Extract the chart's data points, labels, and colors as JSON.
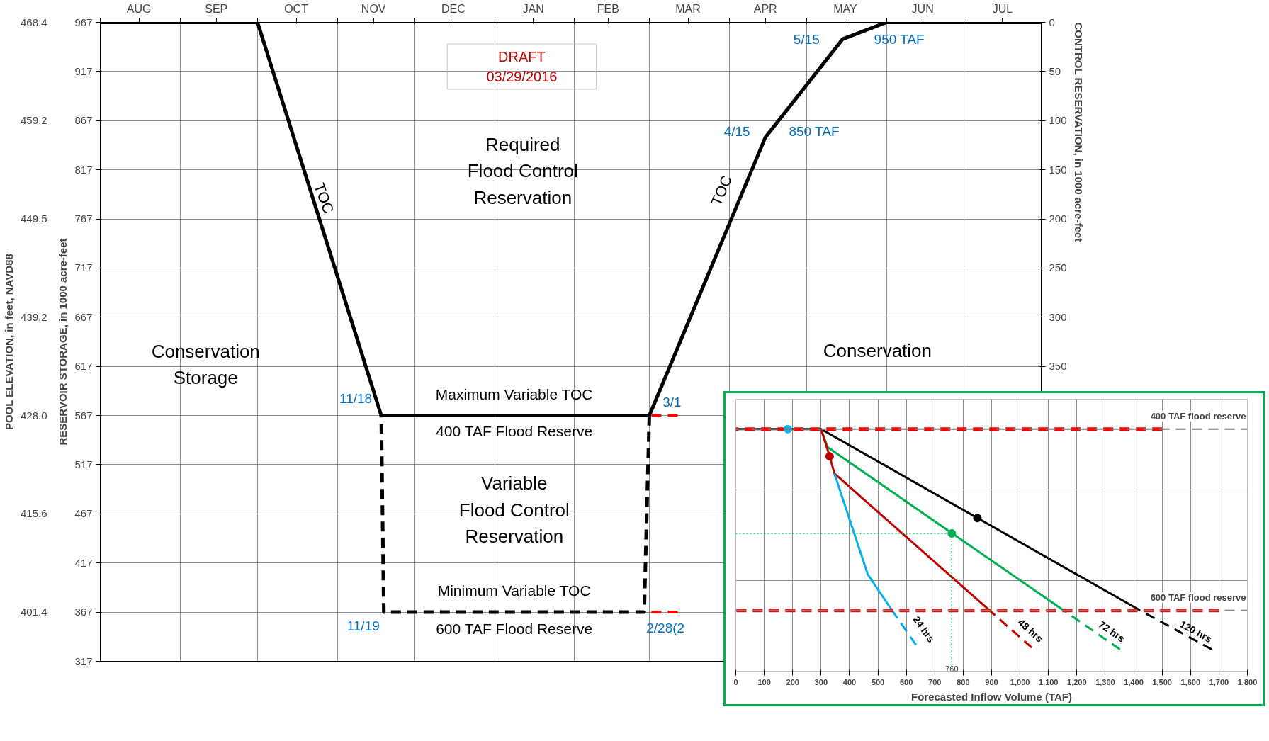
{
  "chart_data": [
    {
      "type": "line",
      "xlim": [
        "2015-08-01",
        "2016-07-31"
      ],
      "xticks": [
        {
          "value": "2015-08-01",
          "label": null
        },
        {
          "value": "2015-08-16",
          "label": "AUG"
        },
        {
          "value": "2015-09-01",
          "label": null
        },
        {
          "value": "2015-09-15",
          "label": "SEP"
        },
        {
          "value": "2015-10-01",
          "label": null
        },
        {
          "value": "2015-10-16",
          "label": "OCT"
        },
        {
          "value": "2015-11-01",
          "label": null
        },
        {
          "value": "2015-11-15",
          "label": "NOV"
        },
        {
          "value": "2015-12-01",
          "label": null
        },
        {
          "value": "2015-12-16",
          "label": "DEC"
        },
        {
          "value": "2016-01-01",
          "label": null
        },
        {
          "value": "2016-01-16",
          "label": "JAN"
        },
        {
          "value": "2016-02-01",
          "label": null
        },
        {
          "value": "2016-02-14",
          "label": "FEB"
        },
        {
          "value": "2016-03-01",
          "label": null
        },
        {
          "value": "2016-03-16",
          "label": "MAR"
        },
        {
          "value": "2016-04-01",
          "label": null
        },
        {
          "value": "2016-04-15",
          "label": "APR"
        },
        {
          "value": "2016-05-01",
          "label": null
        },
        {
          "value": "2016-05-16",
          "label": "MAY"
        },
        {
          "value": "2016-06-01",
          "label": null
        },
        {
          "value": "2016-06-15",
          "label": "JUN"
        },
        {
          "value": "2016-07-01",
          "label": null
        },
        {
          "value": "2016-07-16",
          "label": "JUL"
        }
      ],
      "ylim": [
        317,
        967
      ],
      "yticks": [
        317,
        367,
        417,
        467,
        517,
        567,
        617,
        667,
        717,
        767,
        817,
        867,
        917,
        967
      ],
      "ylabel": "RESERVOIR STORAGE, in 1000 acre-feet",
      "y2label": "CONTROL RESERVATION, in 1000 acre-feet",
      "y2lim": [
        650,
        0
      ],
      "y2ticks": [
        0,
        50,
        100,
        150,
        200,
        250,
        300,
        350
      ],
      "y3label": "POOL ELEVATION, in feet, NAVD88",
      "grid": true,
      "series": [
        {
          "color": "#000000",
          "line_style": "solid",
          "x": [
            "2015-08-01",
            "2015-10-01",
            "2015-11-18",
            "2016-03-01",
            "2016-04-15",
            "2016-05-15",
            "2016-06-01",
            "2016-07-31"
          ],
          "values": [
            967,
            967,
            567,
            567,
            850,
            950,
            967,
            967
          ]
        },
        {
          "color": "#000000",
          "line_style": "dashed",
          "x": [
            "2015-11-18",
            "2015-11-19",
            "2016-02-28",
            "2016-03-01"
          ],
          "values": [
            567,
            367,
            367,
            567
          ]
        },
        {
          "color": "#ff0000",
          "line_style": "dashed",
          "x": [
            "2016-03-01",
            "2016-03-12"
          ],
          "values": [
            567,
            567
          ]
        },
        {
          "color": "#ff0000",
          "line_style": "dashed",
          "x": [
            "2016-03-01",
            "2016-03-12"
          ],
          "values": [
            367,
            367
          ]
        }
      ],
      "annotations": [
        "DRAFT\n03/29/2016",
        "Required\nFlood Control\nReservation",
        "TOC",
        "TOC",
        "Conservation\nStorage",
        "Conservation",
        "Maximum Variable TOC",
        "400 TAF Flood Reserve",
        "Variable\nFlood Control\nReservation",
        "Minimum Variable TOC",
        "600 TAF Flood Reserve",
        {
          "text": "11/18",
          "x": "2015-11-18",
          "y": 567
        },
        {
          "text": "11/19",
          "x": "2015-11-19",
          "y": 367
        },
        {
          "text": "3/1",
          "x": "2016-03-01",
          "y": 567
        },
        {
          "text": "2/28(2",
          "x": "2016-02-28",
          "y": 367
        },
        {
          "text": "4/15",
          "x": "2016-04-15",
          "y": 850
        },
        {
          "text": "850 TAF",
          "x": "2016-04-15",
          "y": 850
        },
        {
          "text": "5/15",
          "x": "2016-05-15",
          "y": 950
        },
        {
          "text": "950 TAF",
          "x": "2016-05-15",
          "y": 950
        },
        "468.4",
        "459.2",
        "449.5",
        "439.2",
        "428.0",
        "415.6",
        "401.4"
      ]
    },
    {
      "type": "line",
      "xlabel": "Forecasted Inflow Volume (TAF)",
      "xlim": [
        0,
        1800
      ],
      "xticks": [
        0,
        100,
        200,
        300,
        400,
        500,
        600,
        700,
        800,
        900,
        {
          "value": 1000,
          "label": "1,000"
        },
        {
          "value": 1100,
          "label": "1,100"
        },
        {
          "value": 1200,
          "label": "1,200"
        },
        {
          "value": 1300,
          "label": "1,300"
        },
        {
          "value": 1400,
          "label": "1,400"
        },
        {
          "value": 1500,
          "label": "1,500"
        },
        {
          "value": 1600,
          "label": "1,600"
        },
        {
          "value": 1700,
          "label": "1,700"
        },
        {
          "value": 1800,
          "label": "1,800"
        }
      ],
      "ylim": [
        667,
        367
      ],
      "yticks": [
        {
          "value": 467,
          "label": null
        },
        {
          "value": 567,
          "label": null
        }
      ],
      "tick_labels": "x",
      "grid": true,
      "ref_lines": [
        {
          "axis": "y",
          "value": 400,
          "label": "400 TAF flood reserve",
          "color": "#808080",
          "line_style": "dashed"
        },
        {
          "axis": "y",
          "value": 600,
          "label": "600 TAF flood reserve",
          "color": "#808080",
          "line_style": "dashed"
        }
      ],
      "series": [
        {
          "type": "line",
          "color": "#000000",
          "line_style": "solid",
          "x": [
            0,
            300,
            1423
          ],
          "values": [
            400,
            400,
            600
          ]
        },
        {
          "type": "line",
          "name": "120 hrs",
          "color": "#000000",
          "line_style": "dashed",
          "x": [
            1423,
            1675
          ],
          "values": [
            600,
            643
          ]
        },
        {
          "type": "line",
          "color": "#00b050",
          "line_style": "solid",
          "x": [
            300,
            323,
            1154
          ],
          "values": [
            400,
            420,
            600
          ]
        },
        {
          "type": "line",
          "name": "72 hrs",
          "color": "#00b050",
          "line_style": "dashed",
          "x": [
            1154,
            1352
          ],
          "values": [
            600,
            643
          ]
        },
        {
          "type": "line",
          "color": "#c00000",
          "line_style": "solid",
          "x": [
            300,
            330,
            347,
            893
          ],
          "values": [
            400,
            430,
            449,
            600
          ]
        },
        {
          "type": "line",
          "name": "48 hrs",
          "color": "#c00000",
          "line_style": "dashed",
          "x": [
            893,
            1041
          ],
          "values": [
            600,
            641
          ]
        },
        {
          "type": "line",
          "color": "#00b0f0",
          "line_style": "solid",
          "x": [
            347,
            464,
            550
          ],
          "values": [
            449,
            560,
            600
          ]
        },
        {
          "type": "line",
          "name": "24 hrs",
          "color": "#00b0f0",
          "line_style": "dashed",
          "x": [
            550,
            634
          ],
          "values": [
            600,
            638
          ]
        },
        {
          "type": "line",
          "color": "#00b050",
          "line_style": "dotted",
          "x": [
            0,
            760,
            760
          ],
          "values": [
            515,
            515,
            667
          ]
        },
        {
          "type": "line",
          "color": "#ff0000",
          "line_style": "dashed",
          "x": [
            0,
            1500
          ],
          "values": [
            400,
            400
          ]
        },
        {
          "type": "line",
          "color": "#ff0000",
          "line_style": "dashed",
          "x": [
            0,
            1700
          ],
          "values": [
            600,
            600
          ]
        },
        {
          "type": "scatter",
          "marker": "circle",
          "color": "#00b0f0",
          "x": [
            183
          ],
          "values": [
            400
          ]
        },
        {
          "type": "scatter",
          "marker": "circle",
          "color": "#c00000",
          "x": [
            330
          ],
          "values": [
            430
          ]
        },
        {
          "type": "scatter",
          "marker": "circle",
          "color": "#00b050",
          "x": [
            760
          ],
          "values": [
            515
          ]
        },
        {
          "type": "scatter",
          "marker": "circle",
          "color": "#000000",
          "x": [
            850
          ],
          "values": [
            498
          ]
        }
      ],
      "annotations": [
        {
          "text": "760",
          "x": 760,
          "y": 667
        }
      ]
    }
  ]
}
